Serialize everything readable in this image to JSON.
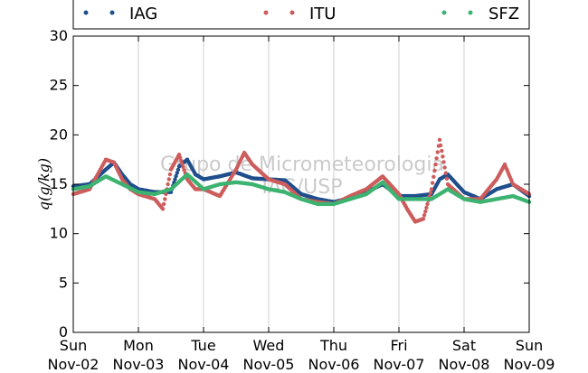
{
  "chart_data": {
    "type": "scatter",
    "ylabel": "q(g/kg)",
    "ylim": [
      0,
      30
    ],
    "yticks": [
      0,
      5,
      10,
      15,
      20,
      25,
      30
    ],
    "xlim": [
      "2014-11-02",
      "2014-11-09"
    ],
    "xticks": [
      {
        "day": "Sun",
        "date": "Nov-02"
      },
      {
        "day": "Mon",
        "date": "Nov-03"
      },
      {
        "day": "Tue",
        "date": "Nov-04"
      },
      {
        "day": "Wed",
        "date": "Nov-05"
      },
      {
        "day": "Thu",
        "date": "Nov-06"
      },
      {
        "day": "Fri",
        "date": "Nov-07"
      },
      {
        "day": "Sat",
        "date": "Nov-08"
      },
      {
        "day": "Sun",
        "date": "Nov-09"
      }
    ],
    "grid": "vertical",
    "legend_position": "top",
    "watermark": [
      "Grupo de Micrometeorologia",
      "IAG/USP"
    ],
    "series": [
      {
        "name": "IAG",
        "color": "#1f4e8c",
        "x": [
          "11-02 00:00",
          "11-02 06:00",
          "11-02 12:00",
          "11-02 15:00",
          "11-02 18:00",
          "11-02 21:00",
          "11-03 00:00",
          "11-03 06:00",
          "11-03 12:00",
          "11-03 15:00",
          "11-03 18:00",
          "11-03 21:00",
          "11-04 00:00",
          "11-04 06:00",
          "11-04 12:00",
          "11-04 18:00",
          "11-05 00:00",
          "11-05 06:00",
          "11-05 12:00",
          "11-05 18:00",
          "11-06 00:00",
          "11-06 06:00",
          "11-06 12:00",
          "11-06 18:00",
          "11-07 00:00",
          "11-07 06:00",
          "11-07 12:00",
          "11-07 15:00",
          "11-07 18:00",
          "11-08 00:00",
          "11-08 06:00",
          "11-08 12:00",
          "11-08 18:00",
          "11-09 00:00"
        ],
        "y": [
          14.8,
          15.0,
          16.5,
          17.2,
          16.0,
          15.0,
          14.5,
          14.2,
          14.2,
          16.8,
          17.5,
          16.0,
          15.5,
          15.8,
          16.2,
          15.6,
          15.5,
          15.4,
          14.0,
          13.5,
          13.2,
          13.6,
          14.2,
          15.0,
          13.8,
          13.8,
          14.0,
          15.5,
          16.0,
          14.2,
          13.5,
          14.5,
          15.0,
          13.8
        ]
      },
      {
        "name": "ITU",
        "color": "#cd5c5c",
        "x": [
          "11-02 00:00",
          "11-02 06:00",
          "11-02 12:00",
          "11-02 15:00",
          "11-02 18:00",
          "11-02 21:00",
          "11-03 00:00",
          "11-03 06:00",
          "11-03 09:00",
          "11-03 12:00",
          "11-03 15:00",
          "11-03 18:00",
          "11-03 21:00",
          "11-04 00:00",
          "11-04 06:00",
          "11-04 12:00",
          "11-04 15:00",
          "11-04 18:00",
          "11-05 00:00",
          "11-05 06:00",
          "11-05 12:00",
          "11-05 18:00",
          "11-06 00:00",
          "11-06 06:00",
          "11-06 12:00",
          "11-06 18:00",
          "11-07 00:00",
          "11-07 03:00",
          "11-07 06:00",
          "11-07 09:00",
          "11-07 12:00",
          "11-07 15:00",
          "11-07 18:00",
          "11-08 00:00",
          "11-08 06:00",
          "11-08 12:00",
          "11-08 15:00",
          "11-08 18:00",
          "11-09 00:00"
        ],
        "y": [
          14.0,
          14.5,
          17.5,
          17.2,
          15.5,
          14.5,
          14.0,
          13.5,
          12.5,
          16.5,
          18.0,
          15.5,
          14.5,
          14.5,
          13.8,
          16.5,
          18.2,
          17.0,
          15.5,
          15.0,
          13.5,
          13.2,
          13.0,
          13.8,
          14.5,
          15.8,
          14.0,
          12.5,
          11.2,
          11.5,
          14.5,
          19.5,
          15.0,
          13.5,
          13.5,
          15.5,
          17.0,
          15.0,
          14.0
        ]
      },
      {
        "name": "SFZ",
        "color": "#3cb371",
        "x": [
          "11-02 00:00",
          "11-02 06:00",
          "11-02 12:00",
          "11-02 18:00",
          "11-03 00:00",
          "11-03 06:00",
          "11-03 12:00",
          "11-03 18:00",
          "11-04 00:00",
          "11-04 06:00",
          "11-04 12:00",
          "11-04 18:00",
          "11-05 00:00",
          "11-05 06:00",
          "11-05 12:00",
          "11-05 18:00",
          "11-06 00:00",
          "11-06 06:00",
          "11-06 12:00",
          "11-06 18:00",
          "11-07 00:00",
          "11-07 06:00",
          "11-07 12:00",
          "11-07 18:00",
          "11-08 00:00",
          "11-08 06:00",
          "11-08 12:00",
          "11-08 18:00",
          "11-09 00:00"
        ],
        "y": [
          14.5,
          14.8,
          15.8,
          15.0,
          14.2,
          14.0,
          14.5,
          16.0,
          14.5,
          15.0,
          15.2,
          15.0,
          14.5,
          14.2,
          13.5,
          13.0,
          13.0,
          13.5,
          14.0,
          15.2,
          13.5,
          13.5,
          13.5,
          14.5,
          13.5,
          13.2,
          13.5,
          13.8,
          13.2
        ]
      }
    ]
  }
}
